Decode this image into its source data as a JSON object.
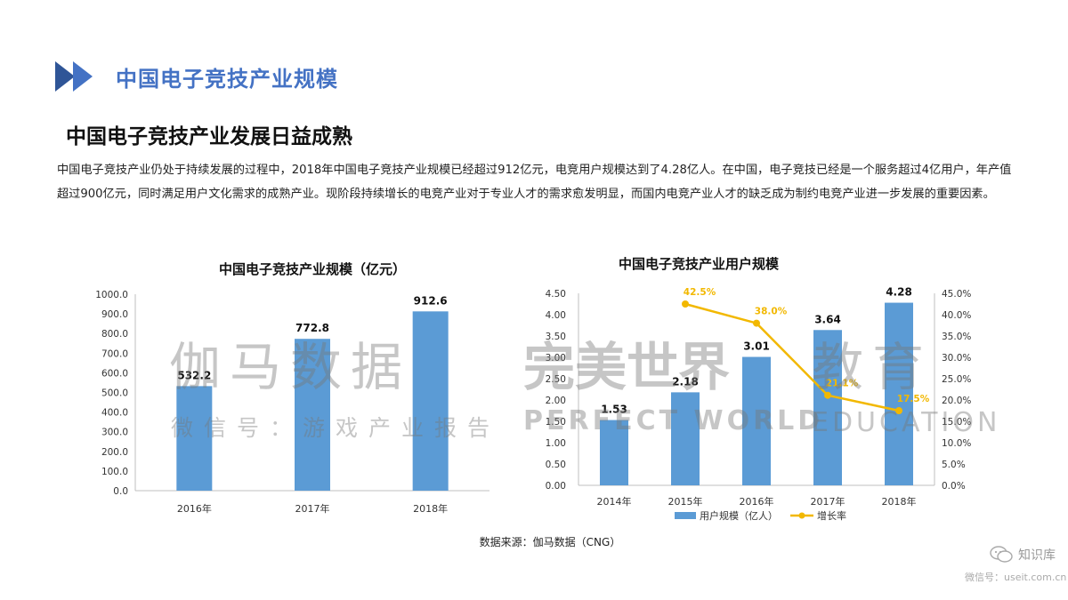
{
  "header": {
    "title": "中国电子竞技产业规模",
    "accent": "#4472c4"
  },
  "subtitle": "中国电子竞技产业发展日益成熟",
  "paragraph": "中国电子竞技产业仍处于持续发展的过程中，2018年中国电子竞技产业规模已经超过912亿元，电竞用户规模达到了4.28亿人。在中国，电子竞技已经是一个服务超过4亿用户，年产值超过900亿元，同时满足用户文化需求的成熟产业。现阶段持续增长的电竞产业对于专业人才的需求愈发明显，而国内电竞产业人才的缺乏成为制约电竞产业进一步发展的重要因素。",
  "chart_data": [
    {
      "type": "bar",
      "title": "中国电子竞技产业规模（亿元）",
      "categories": [
        "2016年",
        "2017年",
        "2018年"
      ],
      "values": [
        532.2,
        772.8,
        912.6
      ],
      "value_labels": [
        "532.2",
        "772.8",
        "912.6"
      ],
      "ylim": [
        0,
        1000
      ],
      "yticks": [
        "0.0",
        "100.0",
        "200.0",
        "300.0",
        "400.0",
        "500.0",
        "600.0",
        "700.0",
        "800.0",
        "900.0",
        "1000.0"
      ],
      "grid": false,
      "bar_color": "#5b9bd5"
    },
    {
      "type": "bar+line",
      "title": "中国电子竞技产业用户规模",
      "categories": [
        "2014年",
        "2015年",
        "2016年",
        "2017年",
        "2018年"
      ],
      "series": [
        {
          "name": "用户规模（亿人）",
          "type": "bar",
          "axis": "left",
          "values": [
            1.53,
            2.18,
            3.01,
            3.64,
            4.28
          ],
          "labels": [
            "1.53",
            "2.18",
            "3.01",
            "3.64",
            "4.28"
          ],
          "color": "#5b9bd5"
        },
        {
          "name": "增长率",
          "type": "line",
          "axis": "right",
          "values": [
            null,
            42.5,
            38.0,
            21.1,
            17.5
          ],
          "labels": [
            "",
            "42.5%",
            "38.0%",
            "21.1%",
            "17.5%"
          ],
          "color": "#f2b800"
        }
      ],
      "ylim_left": [
        0,
        4.5
      ],
      "yticks_left": [
        "0.00",
        "0.50",
        "1.00",
        "1.50",
        "2.00",
        "2.50",
        "3.00",
        "3.50",
        "4.00",
        "4.50"
      ],
      "ylim_right": [
        0,
        45
      ],
      "yticks_right": [
        "0.0%",
        "5.0%",
        "10.0%",
        "15.0%",
        "20.0%",
        "25.0%",
        "30.0%",
        "35.0%",
        "40.0%",
        "45.0%"
      ],
      "legend": "bottom",
      "grid": false
    }
  ],
  "source": "数据来源：伽马数据（CNG）",
  "watermarks": {
    "gamma": "伽马数据",
    "gamma_sub": "微信号：游戏产业报告",
    "perfect": "完美世界",
    "perfect_latin": "PERFECT WORLD",
    "edu": "教育",
    "edu_latin": "EDUCATION"
  },
  "badge": {
    "name": "知识库",
    "url": "微信号：useit.com.cn",
    "icon": "wechat-icon"
  }
}
